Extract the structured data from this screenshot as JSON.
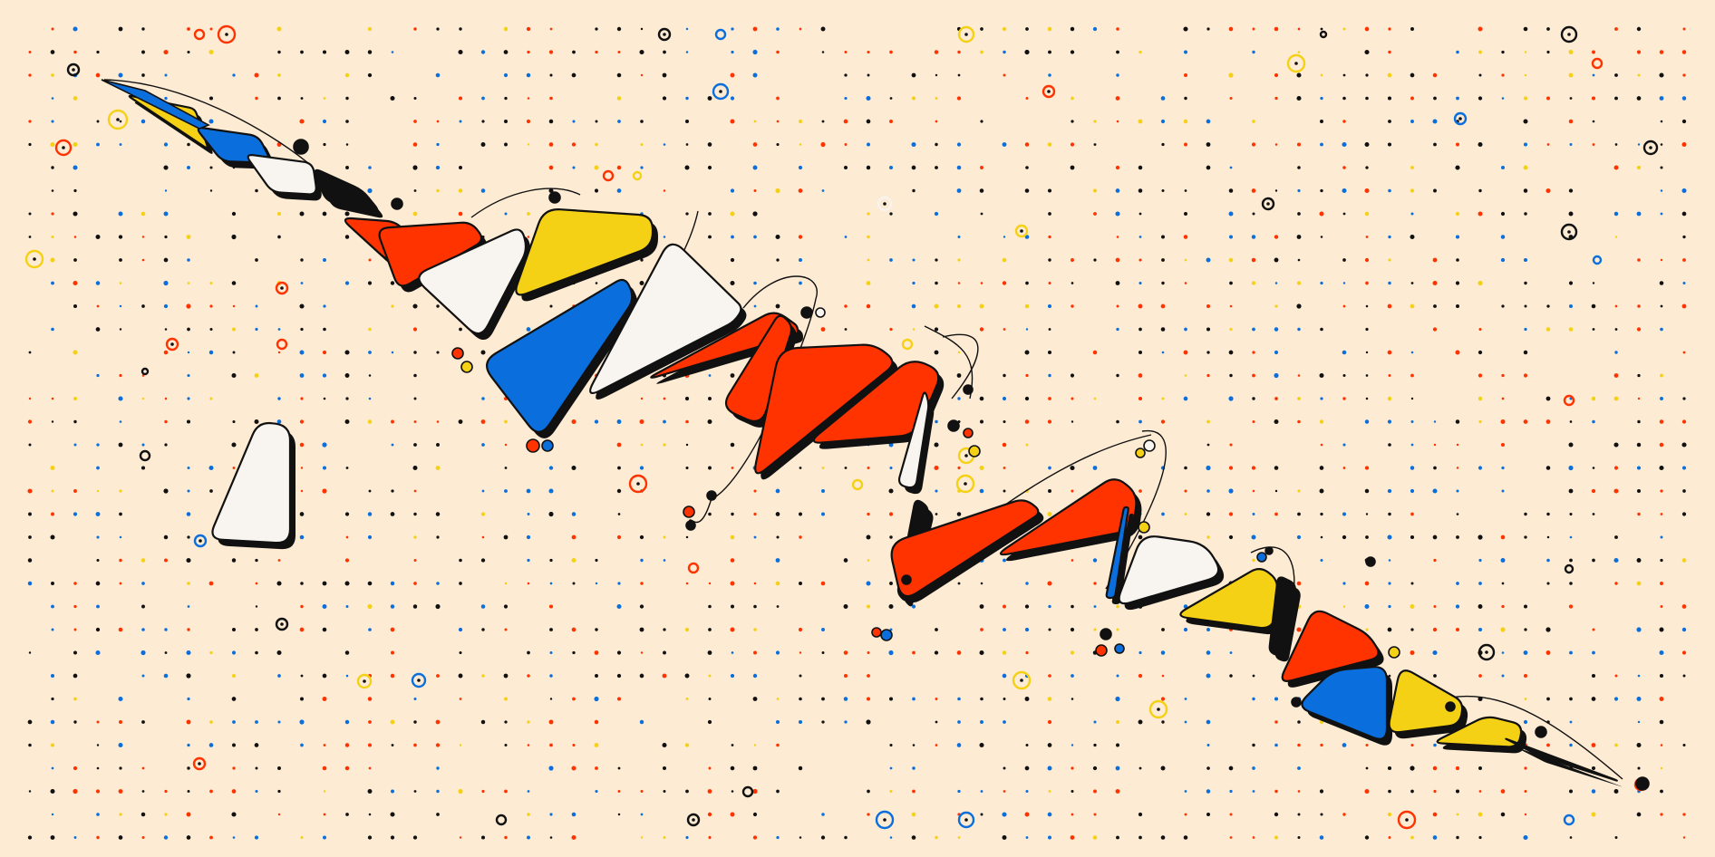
{
  "artwork": {
    "palette": {
      "background": "#fdebd3",
      "red": "#ff3300",
      "yellow": "#f5d116",
      "blue": "#0a6fdc",
      "white": "#f8f4f0",
      "black": "#111111",
      "shadow": "#111111"
    }
  }
}
